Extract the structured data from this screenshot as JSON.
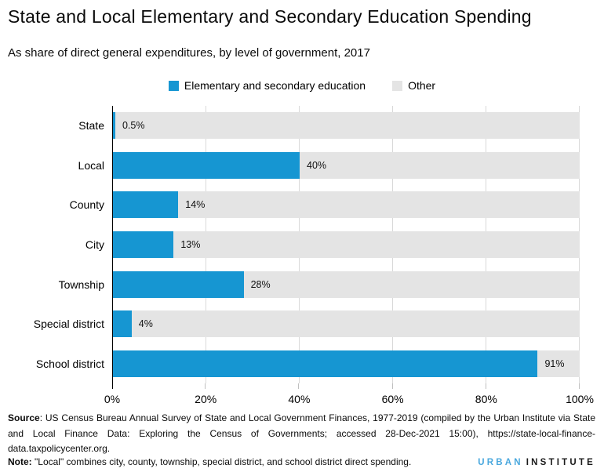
{
  "page": {
    "title": "State and Local Elementary and Secondary Education Spending",
    "subtitle": "As share of direct general expenditures, by level of government, 2017"
  },
  "legend": {
    "items": [
      {
        "label": "Elementary and secondary education",
        "color": "#1696d2"
      },
      {
        "label": "Other",
        "color": "#e4e4e4"
      }
    ]
  },
  "chart_data": {
    "type": "bar",
    "orientation": "horizontal",
    "stacked": true,
    "title": "State and Local Elementary and Secondary Education Spending",
    "subtitle": "As share of direct general expenditures, by level of government, 2017",
    "categories": [
      "State",
      "Local",
      "County",
      "City",
      "Township",
      "Special district",
      "School district"
    ],
    "series": [
      {
        "name": "Elementary and secondary education",
        "color": "#1696d2",
        "values": [
          0.5,
          40,
          14,
          13,
          28,
          4,
          91
        ]
      },
      {
        "name": "Other",
        "color": "#e4e4e4",
        "values": [
          99.5,
          60,
          86,
          87,
          72,
          96,
          9
        ]
      }
    ],
    "value_labels": [
      "0.5%",
      "40%",
      "14%",
      "13%",
      "28%",
      "4%",
      "91%"
    ],
    "x_tick_labels": [
      "0%",
      "20%",
      "40%",
      "60%",
      "80%",
      "100%"
    ],
    "xlim": [
      0,
      100
    ],
    "grid": "vertical, every 20%",
    "legend_position": "top center"
  },
  "footer": {
    "source_label": "Source",
    "source_text": ": US Census Bureau Annual Survey of State and Local Government Finances, 1977-2019 (compiled by the Urban Institute via State and Local Finance Data: Exploring the Census of Governments; accessed 28-Dec-2021 15:00), https://state-local-finance-data.taxpolicycenter.org.",
    "note_label": "Note:",
    "note_text": " \"Local\" combines city, county, township, special district, and school district direct spending.",
    "logo_urban": "URBAN",
    "logo_institute": "INSTITUTE",
    "logo_urban_color": "#4aa8de"
  }
}
